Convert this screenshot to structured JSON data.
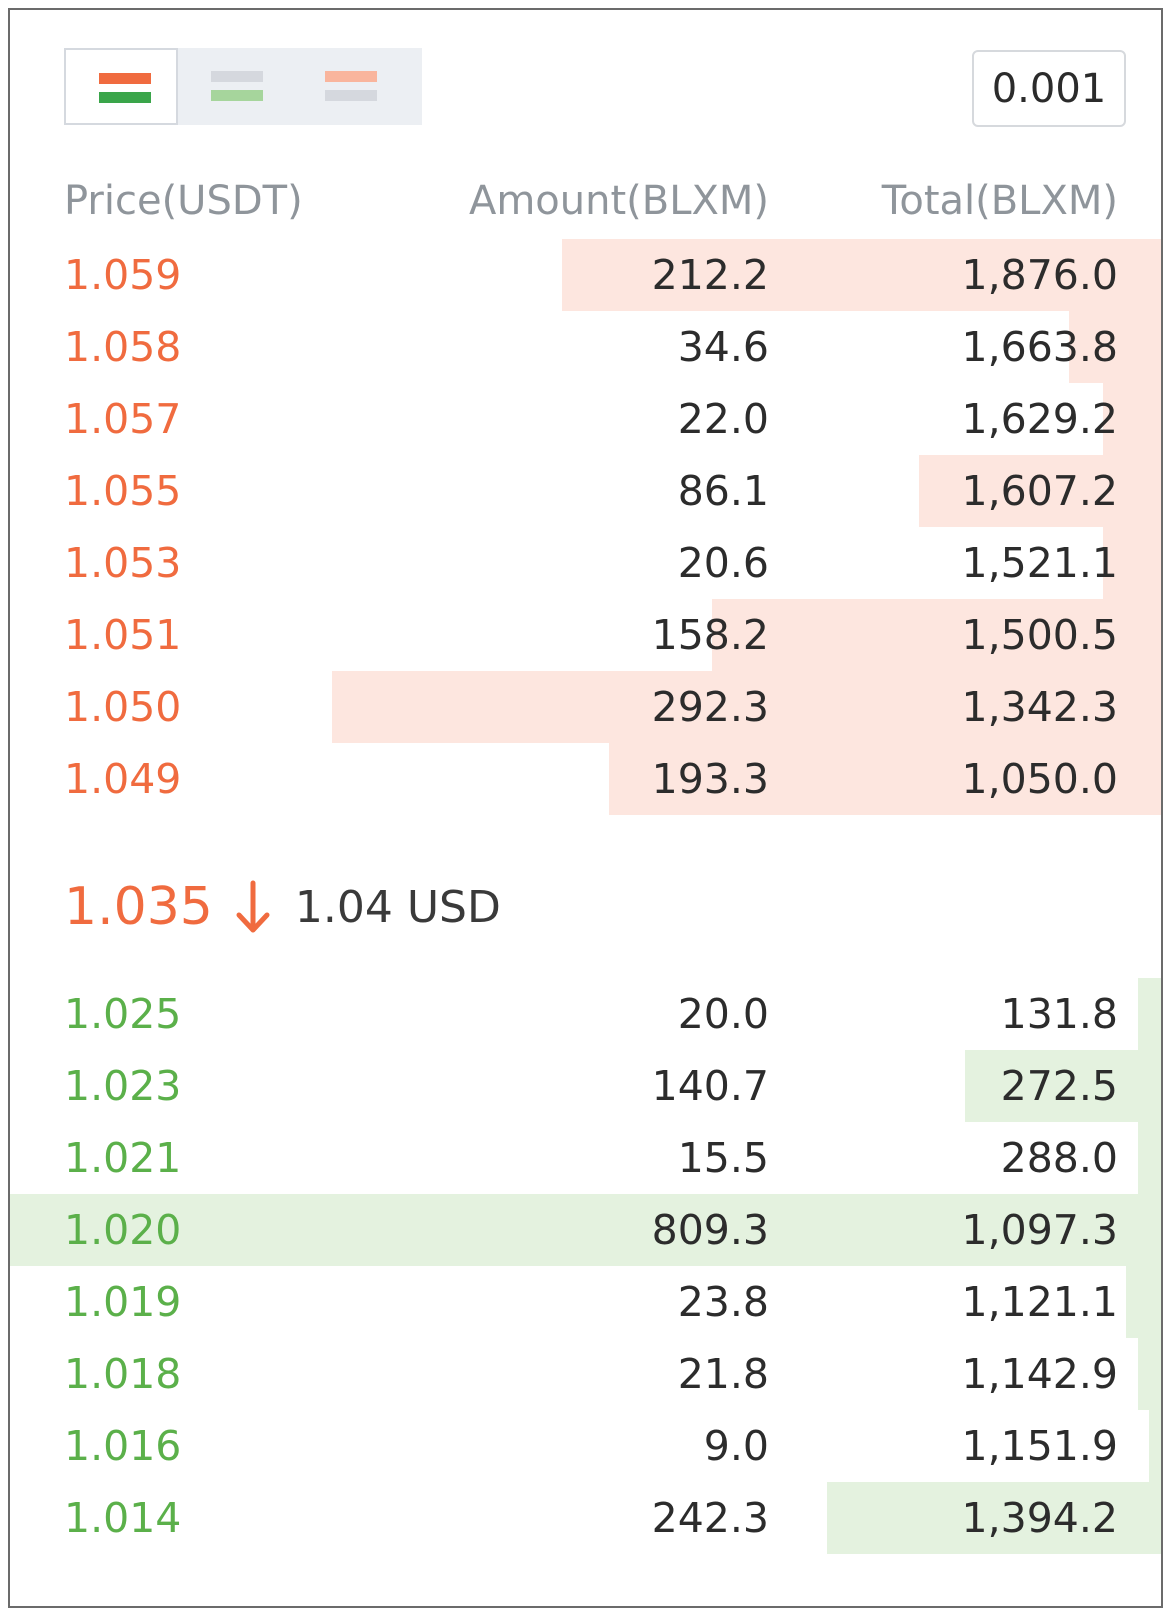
{
  "precision": "0.001",
  "view_modes": [
    {
      "name": "both-sides",
      "active": true,
      "top_color": "#f06b3f",
      "bottom_color": "#3aa54a"
    },
    {
      "name": "bids-only",
      "active": false,
      "top_color": "#d5d8de",
      "bottom_color": "#a6d59c"
    },
    {
      "name": "asks-only",
      "active": false,
      "top_color": "#f9b59d",
      "bottom_color": "#d5d8de"
    }
  ],
  "headers": {
    "price": "Price(USDT)",
    "amount": "Amount(BLXM)",
    "total": "Total(BLXM)"
  },
  "asks": [
    {
      "price": "1.059",
      "amount": "212.2",
      "total": "1,876.0",
      "depth": 0.52
    },
    {
      "price": "1.058",
      "amount": "34.6",
      "total": "1,663.8",
      "depth": 0.08
    },
    {
      "price": "1.057",
      "amount": "22.0",
      "total": "1,629.2",
      "depth": 0.05
    },
    {
      "price": "1.055",
      "amount": "86.1",
      "total": "1,607.2",
      "depth": 0.21
    },
    {
      "price": "1.053",
      "amount": "20.6",
      "total": "1,521.1",
      "depth": 0.05
    },
    {
      "price": "1.051",
      "amount": "158.2",
      "total": "1,500.5",
      "depth": 0.39
    },
    {
      "price": "1.050",
      "amount": "292.3",
      "total": "1,342.3",
      "depth": 0.72
    },
    {
      "price": "1.049",
      "amount": "193.3",
      "total": "1,050.0",
      "depth": 0.48
    }
  ],
  "last": {
    "price": "1.035",
    "direction": "down",
    "usd": "1.04 USD"
  },
  "bids": [
    {
      "price": "1.025",
      "amount": "20.0",
      "total": "131.8",
      "depth": 0.02
    },
    {
      "price": "1.023",
      "amount": "140.7",
      "total": "272.5",
      "depth": 0.17
    },
    {
      "price": "1.021",
      "amount": "15.5",
      "total": "288.0",
      "depth": 0.02
    },
    {
      "price": "1.020",
      "amount": "809.3",
      "total": "1,097.3",
      "depth": 1.0
    },
    {
      "price": "1.019",
      "amount": "23.8",
      "total": "1,121.1",
      "depth": 0.03
    },
    {
      "price": "1.018",
      "amount": "21.8",
      "total": "1,142.9",
      "depth": 0.02
    },
    {
      "price": "1.016",
      "amount": "9.0",
      "total": "1,151.9",
      "depth": 0.01
    },
    {
      "price": "1.014",
      "amount": "242.3",
      "total": "1,394.2",
      "depth": 0.29
    }
  ]
}
